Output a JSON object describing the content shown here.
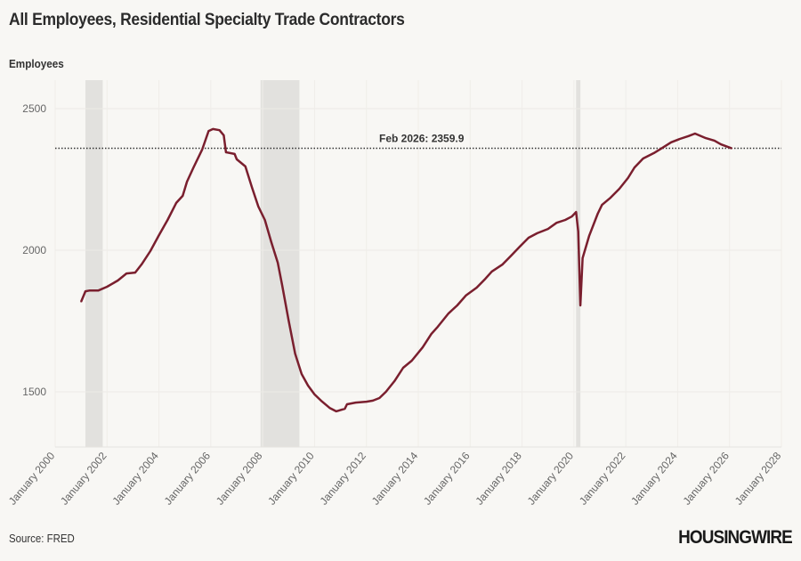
{
  "chart_data": {
    "type": "line",
    "title": "All Employees, Residential Specialty Trade Contractors",
    "ylabel": "Employees",
    "xlabel": "",
    "source": "Source: FRED",
    "brand": "HOUSINGWIRE",
    "ylim": [
      1300,
      2600
    ],
    "xlim": [
      "2000-01",
      "2028-01"
    ],
    "yticks": [
      1500,
      2000,
      2500
    ],
    "xticks": [
      "January 2000",
      "January 2002",
      "January 2004",
      "January 2006",
      "January 2008",
      "January 2010",
      "January 2012",
      "January 2014",
      "January 2016",
      "January 2018",
      "January 2020",
      "January 2022",
      "January 2024",
      "January 2026",
      "January 2028"
    ],
    "grid": true,
    "line_color": "#7a1f2e",
    "recession_color": "#e2e1de",
    "recessions": [
      [
        "2001-03",
        "2001-11"
      ],
      [
        "2007-12",
        "2009-06"
      ],
      [
        "2020-02",
        "2020-04"
      ]
    ],
    "reference_line": {
      "value": 2359.9,
      "label": "Feb 2026: 2359.9"
    },
    "series": [
      {
        "x": [
          "2001-01",
          "2001-03",
          "2001-05",
          "2001-09",
          "2002-01",
          "2002-06",
          "2002-10",
          "2003-02",
          "2003-05",
          "2003-09",
          "2004-01",
          "2004-05",
          "2004-09",
          "2004-12",
          "2005-02",
          "2005-05",
          "2005-09",
          "2005-12",
          "2006-02",
          "2006-05",
          "2006-07",
          "2006-08",
          "2006-12",
          "2007-01",
          "2007-05",
          "2007-08",
          "2007-11",
          "2008-02",
          "2008-05",
          "2008-08",
          "2008-10",
          "2009-01",
          "2009-04",
          "2009-07",
          "2009-10",
          "2010-01",
          "2010-04",
          "2010-08",
          "2010-11",
          "2011-03",
          "2011-04",
          "2011-08",
          "2012-01",
          "2012-04",
          "2012-07",
          "2012-10",
          "2013-02",
          "2013-06",
          "2013-10",
          "2014-03",
          "2014-07",
          "2014-10",
          "2015-03",
          "2015-07",
          "2015-11",
          "2016-04",
          "2016-08",
          "2016-11",
          "2017-04",
          "2017-08",
          "2017-12",
          "2018-04",
          "2018-08",
          "2019-01",
          "2019-05",
          "2019-09",
          "2019-12",
          "2020-02",
          "2020-03",
          "2020-04",
          "2020-05",
          "2020-08",
          "2020-12",
          "2021-02",
          "2021-06",
          "2021-10",
          "2022-02",
          "2022-05",
          "2022-09",
          "2023-02",
          "2023-06",
          "2023-10",
          "2024-02",
          "2024-06",
          "2024-09",
          "2025-02",
          "2025-06",
          "2025-09",
          "2026-02"
        ],
        "y": [
          1818,
          1855,
          1858,
          1858,
          1871,
          1893,
          1918,
          1921,
          1950,
          1997,
          2053,
          2107,
          2167,
          2192,
          2242,
          2292,
          2355,
          2421,
          2428,
          2424,
          2406,
          2346,
          2340,
          2321,
          2296,
          2223,
          2154,
          2107,
          2028,
          1956,
          1877,
          1752,
          1635,
          1563,
          1522,
          1491,
          1469,
          1443,
          1431,
          1440,
          1456,
          1462,
          1465,
          1469,
          1478,
          1500,
          1538,
          1585,
          1610,
          1657,
          1704,
          1730,
          1777,
          1805,
          1840,
          1868,
          1899,
          1925,
          1950,
          1981,
          2013,
          2044,
          2060,
          2075,
          2097,
          2107,
          2119,
          2135,
          2066,
          1805,
          1972,
          2050,
          2129,
          2160,
          2186,
          2217,
          2255,
          2292,
          2324,
          2343,
          2362,
          2381,
          2393,
          2403,
          2412,
          2396,
          2387,
          2374,
          2359.9
        ]
      }
    ]
  }
}
